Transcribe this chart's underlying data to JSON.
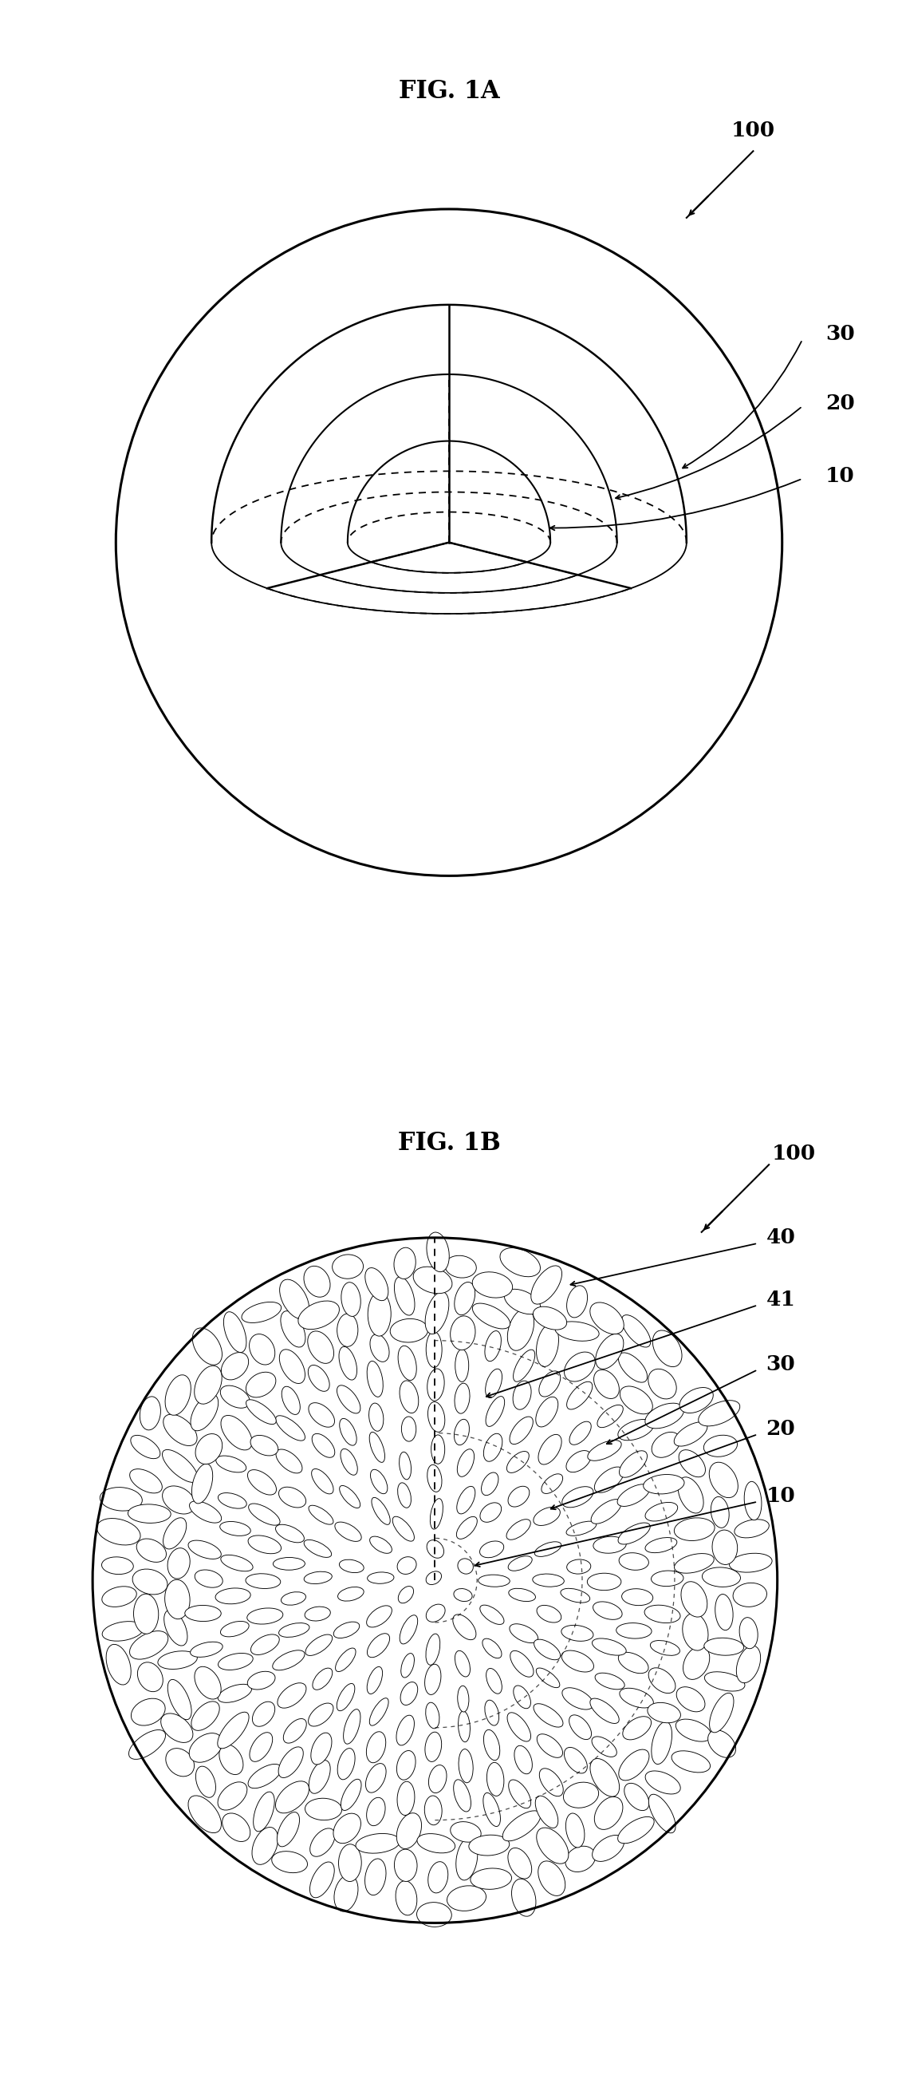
{
  "fig1a_title": "FIG. 1A",
  "fig1b_title": "FIG. 1B",
  "background_color": "#ffffff",
  "r_inner": 0.35,
  "r_middle": 0.58,
  "r_outer": 0.82,
  "r_sphere": 1.15,
  "title_fontsize": 22,
  "label_fontsize": 19,
  "label_100": "100",
  "label_30": "30",
  "label_20": "20",
  "label_10": "10",
  "label_40": "40",
  "label_41": "41"
}
